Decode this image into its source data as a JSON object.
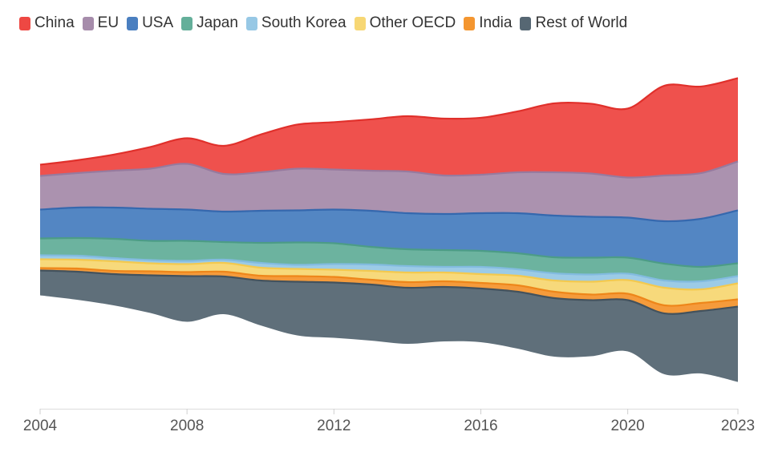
{
  "chart_data": {
    "type": "area",
    "stacked": true,
    "baseline": "centered streamgraph",
    "legend": "top-left",
    "grid": false,
    "x": [
      2004,
      2005,
      2006,
      2007,
      2008,
      2009,
      2010,
      2011,
      2012,
      2013,
      2014,
      2015,
      2016,
      2017,
      2018,
      2019,
      2020,
      2021,
      2022,
      2023
    ],
    "xlim": [
      2004,
      2023
    ],
    "x_ticks": [
      "2004",
      "2008",
      "2012",
      "2016",
      "2020",
      "2023"
    ],
    "series": [
      {
        "name": "China",
        "color": "#ee4843",
        "edge_color": "#e0302b",
        "values": [
          14,
          16,
          20,
          27,
          32,
          35,
          47,
          55,
          59,
          64,
          69,
          71,
          71,
          76,
          86,
          87,
          86,
          112,
          108,
          104
        ]
      },
      {
        "name": "EU",
        "color": "#a68cab",
        "edge_color": "#977a9e",
        "values": [
          42,
          43,
          46,
          50,
          57,
          47,
          48,
          52,
          50,
          50,
          52,
          48,
          48,
          51,
          54,
          54,
          50,
          57,
          57,
          61
        ]
      },
      {
        "name": "USA",
        "color": "#4a7fc0",
        "edge_color": "#3568ae",
        "values": [
          36,
          38,
          39,
          40,
          39,
          38,
          40,
          40,
          42,
          45,
          45,
          45,
          47,
          50,
          52,
          51,
          50,
          53,
          60,
          66
        ]
      },
      {
        "name": "Japan",
        "color": "#64af9a",
        "edge_color": "#4c9c86",
        "values": [
          21,
          22,
          24,
          24,
          25,
          22,
          25,
          28,
          26,
          22,
          21,
          21,
          20,
          20,
          20,
          21,
          20,
          21,
          18,
          16
        ]
      },
      {
        "name": "South Korea",
        "color": "#97c8e5",
        "edge_color": "#82bbdf",
        "values": [
          5,
          5,
          4,
          4,
          4,
          4,
          6,
          5,
          7,
          8,
          8,
          7,
          9,
          8,
          9,
          9,
          8,
          9,
          10,
          9
        ]
      },
      {
        "name": "Other OECD",
        "color": "#f7d774",
        "edge_color": "#f3c94f",
        "values": [
          11,
          11,
          12,
          10,
          10,
          11,
          10,
          9,
          9,
          11,
          12,
          11,
          11,
          12,
          14,
          16,
          17,
          22,
          17,
          20
        ]
      },
      {
        "name": "India",
        "color": "#f49630",
        "edge_color": "#ee861a",
        "values": [
          3,
          4,
          4,
          5,
          5,
          6,
          6,
          7,
          7,
          6,
          7,
          7,
          7,
          8,
          8,
          7,
          8,
          10,
          10,
          9
        ]
      },
      {
        "name": "Rest of World",
        "color": "#566773",
        "edge_color": "#43525d",
        "values": [
          31,
          35,
          39,
          47,
          57,
          47,
          56,
          67,
          69,
          70,
          70,
          68,
          67,
          71,
          73,
          70,
          64,
          76,
          78,
          94
        ]
      }
    ]
  }
}
